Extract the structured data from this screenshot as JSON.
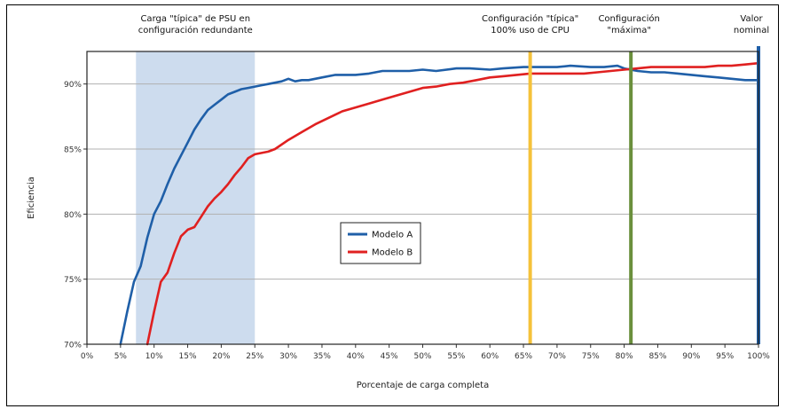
{
  "chart_data": {
    "type": "line",
    "xlabel": "Porcentaje de carga completa",
    "ylabel": "Eficiencia",
    "xlim": [
      0,
      100
    ],
    "ylim": [
      70,
      92.5
    ],
    "x_ticks": [
      "0%",
      "5%",
      "10%",
      "15%",
      "20%",
      "25%",
      "30%",
      "35%",
      "40%",
      "45%",
      "50%",
      "55%",
      "60%",
      "65%",
      "70%",
      "75%",
      "80%",
      "85%",
      "90%",
      "95%",
      "100%"
    ],
    "y_ticks": [
      "70%",
      "75%",
      "80%",
      "85%",
      "90%"
    ],
    "y_tick_values": [
      70,
      75,
      80,
      85,
      90
    ],
    "grid": "horizontal",
    "legend_position": "center",
    "shaded_region": {
      "x_start": 7.3,
      "x_end": 25,
      "color": "#cddcee",
      "label_lines": [
        "Carga \"típica\" de PSU en",
        "configuración redundante"
      ]
    },
    "vertical_markers": [
      {
        "x": 66,
        "color": "#f5c23a",
        "label_lines": [
          "Configuración \"típica\"",
          "100% uso de CPU"
        ]
      },
      {
        "x": 81,
        "color": "#6a8f3c",
        "label_lines": [
          "Configuración",
          "\"máxima\""
        ]
      },
      {
        "x": 100,
        "color": "#1f5fa8",
        "label_lines": [
          "Valor",
          "nominal"
        ]
      }
    ],
    "series": [
      {
        "name": "Modelo A",
        "color": "#1f5fa8",
        "x": [
          5,
          6,
          7,
          8,
          9,
          10,
          11,
          12,
          13,
          14,
          15,
          16,
          17,
          18,
          19,
          20,
          21,
          22,
          23,
          24,
          25,
          26,
          27,
          28,
          29,
          30,
          31,
          32,
          33,
          35,
          37,
          40,
          42,
          44,
          46,
          48,
          50,
          52,
          55,
          57,
          60,
          62,
          65,
          67,
          70,
          72,
          75,
          77,
          79,
          80,
          82,
          84,
          86,
          88,
          90,
          92,
          94,
          96,
          98,
          100
        ],
        "y": [
          70.0,
          72.5,
          74.8,
          76.0,
          78.2,
          80.0,
          81.0,
          82.3,
          83.5,
          84.5,
          85.5,
          86.5,
          87.3,
          88.0,
          88.4,
          88.8,
          89.2,
          89.4,
          89.6,
          89.7,
          89.8,
          89.9,
          90.0,
          90.1,
          90.2,
          90.4,
          90.2,
          90.3,
          90.3,
          90.5,
          90.7,
          90.7,
          90.8,
          91.0,
          91.0,
          91.0,
          91.1,
          91.0,
          91.2,
          91.2,
          91.1,
          91.2,
          91.3,
          91.3,
          91.3,
          91.4,
          91.3,
          91.3,
          91.4,
          91.2,
          91.0,
          90.9,
          90.9,
          90.8,
          90.7,
          90.6,
          90.5,
          90.4,
          90.3,
          90.3
        ]
      },
      {
        "name": "Modelo B",
        "color": "#e02020",
        "x": [
          9,
          10,
          11,
          12,
          13,
          14,
          15,
          16,
          17,
          18,
          19,
          20,
          21,
          22,
          23,
          24,
          25,
          26,
          27,
          28,
          30,
          32,
          34,
          36,
          38,
          40,
          42,
          44,
          46,
          48,
          50,
          52,
          54,
          56,
          58,
          60,
          62,
          64,
          66,
          68,
          70,
          72,
          74,
          76,
          78,
          80,
          82,
          84,
          86,
          88,
          90,
          92,
          94,
          96,
          98,
          100
        ],
        "y": [
          70.0,
          72.5,
          74.8,
          75.5,
          77.0,
          78.3,
          78.8,
          79.0,
          79.8,
          80.6,
          81.2,
          81.7,
          82.3,
          83.0,
          83.6,
          84.3,
          84.6,
          84.7,
          84.8,
          85.0,
          85.7,
          86.3,
          86.9,
          87.4,
          87.9,
          88.2,
          88.5,
          88.8,
          89.1,
          89.4,
          89.7,
          89.8,
          90.0,
          90.1,
          90.3,
          90.5,
          90.6,
          90.7,
          90.8,
          90.8,
          90.8,
          90.8,
          90.8,
          90.9,
          91.0,
          91.1,
          91.2,
          91.3,
          91.3,
          91.3,
          91.3,
          91.3,
          91.4,
          91.4,
          91.5,
          91.6
        ]
      }
    ]
  }
}
